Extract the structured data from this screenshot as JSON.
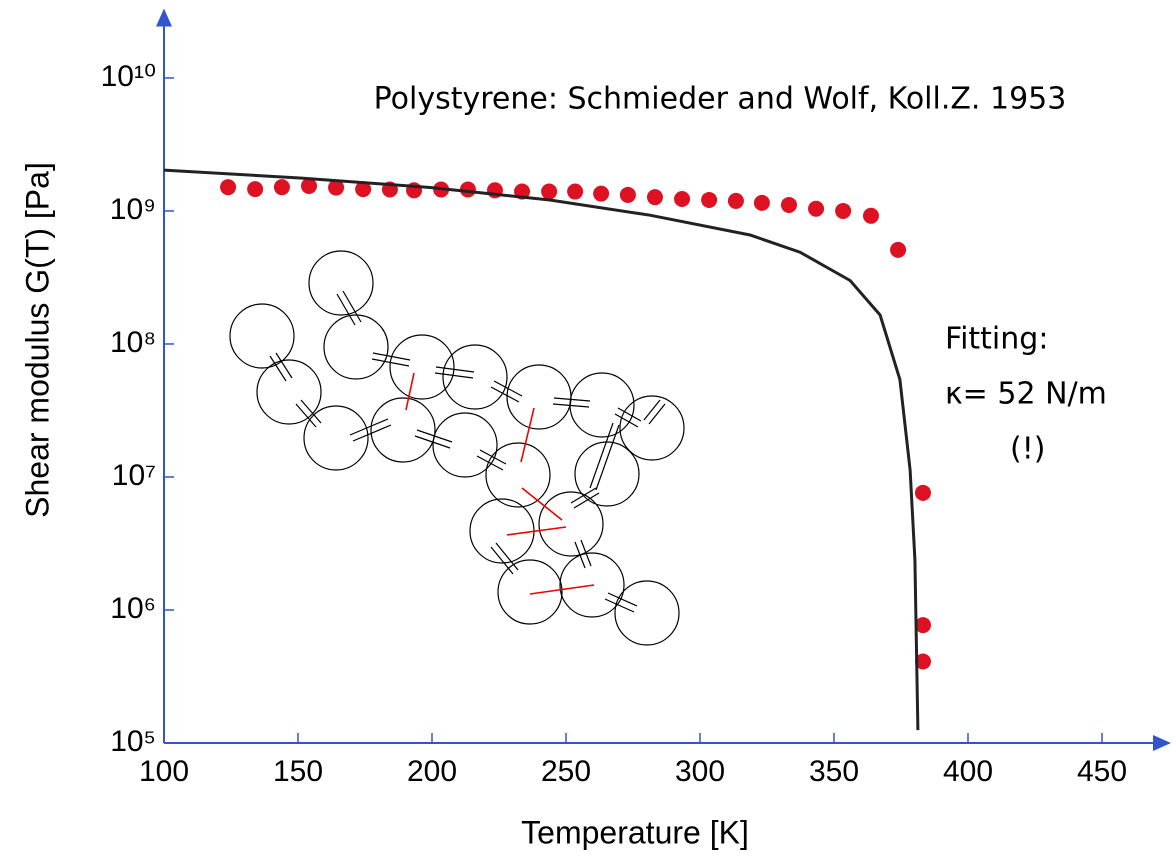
{
  "chart_data": {
    "type": "scatter",
    "title": "Polystyrene: Schmieder and Wolf, Koll.Z. 1953",
    "xlabel": "Temperature [K]",
    "ylabel": "Shear modulus G(T)  [Pa]",
    "annotations": [
      "Fitting:",
      "κ= 52 N/m",
      "(!)"
    ],
    "xlim": [
      100,
      475
    ],
    "ylim": [
      100000,
      30000000000
    ],
    "ylog": true,
    "xticks": [
      100,
      150,
      200,
      250,
      300,
      350,
      400,
      450
    ],
    "yticks": [
      {
        "value": 100000,
        "label": "10⁵"
      },
      {
        "value": 1000000,
        "label": "10⁶"
      },
      {
        "value": 10000000,
        "label": "10⁷"
      },
      {
        "value": 100000000,
        "label": "10⁸"
      },
      {
        "value": 1000000000,
        "label": "10⁹"
      },
      {
        "value": 10000000000,
        "label": "10¹⁰"
      }
    ],
    "axis_color": "#3355cc",
    "series": [
      {
        "type": "scatter",
        "color": "#dd1122",
        "x": [
          123.9,
          134,
          144,
          154.1,
          164.2,
          174.3,
          184.3,
          193.3,
          203.4,
          213.4,
          223.5,
          233.6,
          243.7,
          253.4,
          263.1,
          273.1,
          283.2,
          293.3,
          303.4,
          313.4,
          323.1,
          333.2,
          343.3,
          353.4,
          363.8,
          373.9,
          383.2,
          383.2,
          383.2
        ],
        "values": [
          1510000000,
          1460000000,
          1510000000,
          1540000000,
          1500000000,
          1460000000,
          1450000000,
          1430000000,
          1450000000,
          1450000000,
          1430000000,
          1400000000,
          1400000000,
          1400000000,
          1350000000,
          1320000000,
          1270000000,
          1230000000,
          1210000000,
          1190000000,
          1150000000,
          1110000000,
          1040000000,
          1000000000,
          920000000,
          510000000,
          7600000,
          770000,
          410000
        ]
      },
      {
        "type": "line",
        "color": "#222222",
        "x": [
          100,
          150.7,
          199.3,
          244,
          281.3,
          318.7,
          337.3,
          356,
          367.2,
          374.6,
          378.4,
          380.2,
          381.3
        ],
        "values": [
          2030000000,
          1770000000,
          1500000000,
          1210000000,
          930000000,
          660000000,
          490000000,
          300000000,
          165000000,
          54000000,
          11300000,
          2400000,
          125000
        ]
      }
    ]
  }
}
